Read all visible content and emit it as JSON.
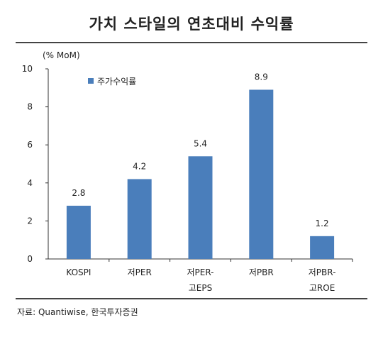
{
  "header": {
    "title": "가치 스타일의 연초대비 수익률"
  },
  "source": "자료: Quantiwise, 한국투자증권",
  "chart_data": {
    "type": "bar",
    "title": "가치 스타일의 연초대비 수익률",
    "ylabel": "(% MoM)",
    "xlabel": "",
    "ylim": [
      0,
      10
    ],
    "yticks": [
      0,
      2,
      4,
      6,
      8,
      10
    ],
    "categories": [
      [
        "KOSPI"
      ],
      [
        "저PER"
      ],
      [
        "저PER-",
        "고EPS"
      ],
      [
        "저PBR"
      ],
      [
        "저PBR-",
        "고ROE"
      ]
    ],
    "series": [
      {
        "name": "주가수익률",
        "values": [
          2.8,
          4.2,
          5.4,
          8.9,
          1.2
        ]
      }
    ],
    "value_labels": [
      "2.8",
      "4.2",
      "5.4",
      "8.9",
      "1.2"
    ],
    "bar_color": "#4A7EBB",
    "legend_position": "top-left",
    "grid": false
  }
}
